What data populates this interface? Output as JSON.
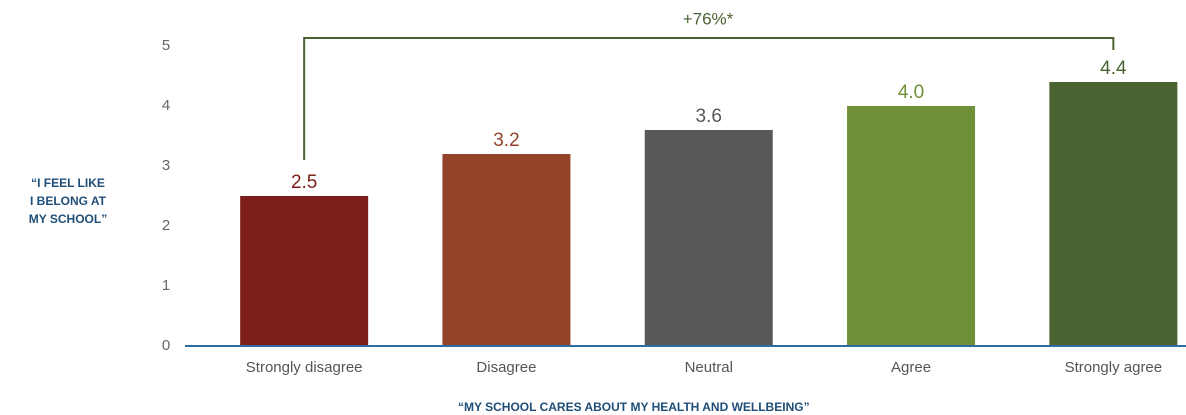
{
  "chart_data": {
    "type": "bar",
    "annotation": "+76%*",
    "ylabel": [
      "“I FEEL LIKE",
      "I BELONG AT",
      "MY SCHOOL”"
    ],
    "xlabel": "“MY SCHOOL CARES ABOUT MY HEALTH AND WELLBEING”",
    "categories": [
      "Strongly disagree",
      "Disagree",
      "Neutral",
      "Agree",
      "Strongly agree"
    ],
    "values": [
      2.5,
      3.2,
      3.6,
      4.0,
      4.4
    ],
    "value_labels": [
      "2.5",
      "3.2",
      "3.6",
      "4.0",
      "4.4"
    ],
    "colors": [
      "#7e1e1a",
      "#93432a",
      "#58585a",
      "#6f9038",
      "#4a6330"
    ],
    "ylim": [
      0,
      5
    ],
    "yticks": [
      0,
      1,
      2,
      3,
      4,
      5
    ],
    "grid": false
  }
}
